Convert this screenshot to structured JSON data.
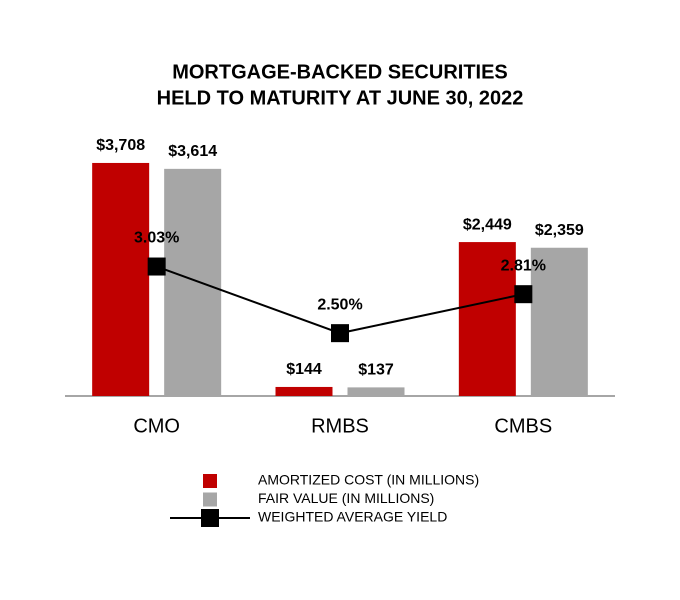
{
  "chart_data": {
    "type": "bar",
    "title": [
      "MORTGAGE-BACKED SECURITIES",
      "HELD TO MATURITY AT JUNE 30, 2022"
    ],
    "categories": [
      "CMO",
      "RMBS",
      "CMBS"
    ],
    "ylim": [
      0,
      4000
    ],
    "y2lim": [
      2,
      4
    ],
    "series": [
      {
        "name": "AMORTIZED COST (IN MILLIONS)",
        "type": "bar",
        "color": "#c00000",
        "values": [
          3708,
          144,
          2449
        ],
        "value_labels": [
          "$3,708",
          "$144",
          "$2,449"
        ]
      },
      {
        "name": "FAIR VALUE (IN MILLIONS)",
        "type": "bar",
        "color": "#a6a6a6",
        "values": [
          3614,
          137,
          2359
        ],
        "value_labels": [
          "$3,614",
          "$137",
          "$2,359"
        ]
      },
      {
        "name": "WEIGHTED AVERAGE YIELD",
        "type": "line",
        "axis": "y2",
        "color": "#000000",
        "values": [
          3.03,
          2.5,
          2.81
        ],
        "value_labels": [
          "3.03%",
          "2.50%",
          "2.81%"
        ]
      }
    ]
  }
}
